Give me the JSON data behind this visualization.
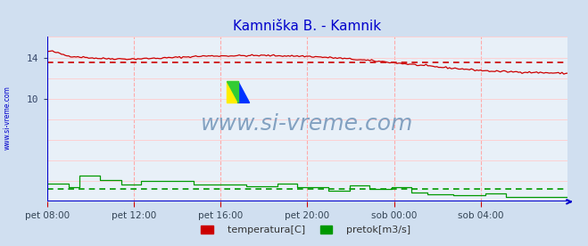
{
  "title": "Kamniška B. - Kamnik",
  "title_color": "#0000cc",
  "background_color": "#d0dff0",
  "plot_bg_color": "#e8f0f8",
  "x_labels": [
    "pet 08:00",
    "pet 12:00",
    "pet 16:00",
    "pet 20:00",
    "sob 00:00",
    "sob 04:00"
  ],
  "x_ticks_norm": [
    0.0,
    0.1667,
    0.3333,
    0.5,
    0.6667,
    0.8333
  ],
  "ylim_min": 0,
  "ylim_max": 16,
  "ytick_vals": [
    10,
    14
  ],
  "temp_avg_line": 13.5,
  "flow_avg_line": 1.2,
  "grid_v_color": "#ffaaaa",
  "grid_h_color": "#ffcccc",
  "temp_color": "#cc0000",
  "flow_color": "#009900",
  "axis_color": "#0000cc",
  "watermark_text": "www.si-vreme.com",
  "watermark_color": "#7799bb",
  "side_text": "www.si-vreme.com",
  "side_text_color": "#0000cc",
  "legend_temp": "temperatura[C]",
  "legend_flow": "pretok[m3/s]",
  "num_points": 288
}
